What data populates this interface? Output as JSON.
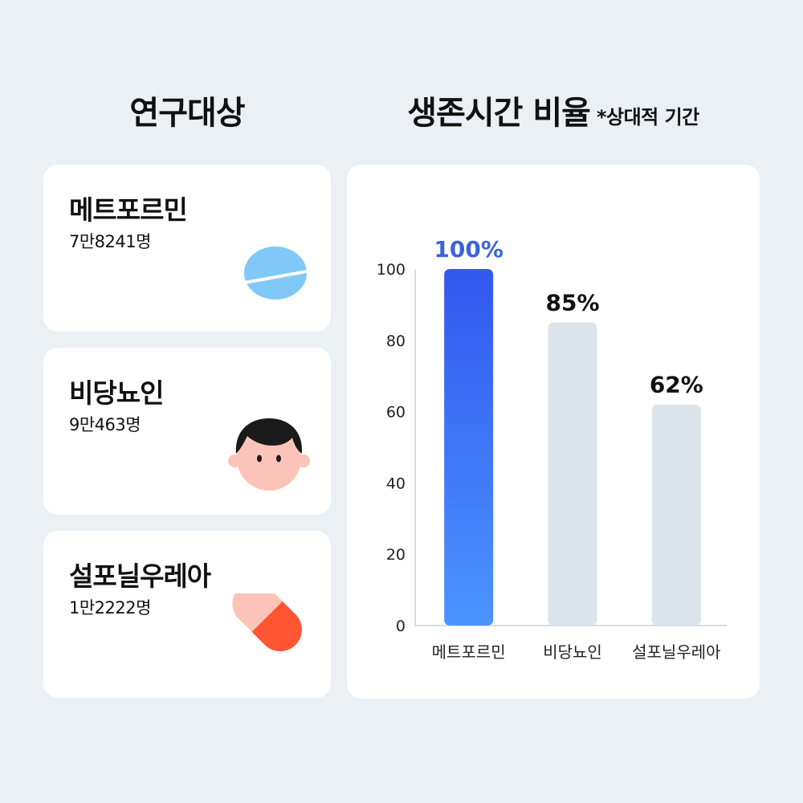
{
  "headings": {
    "subjects": "연구대상",
    "ratio": "생존시간 비율",
    "ratio_note": "*상대적 기간"
  },
  "subjects": [
    {
      "name": "메트포르민",
      "count": "7만8241명",
      "icon": "pill-tablet-icon",
      "color": "#7fc8f8"
    },
    {
      "name": "비당뇨인",
      "count": "9만463명",
      "icon": "person-face-icon",
      "color": "#fcc4b8"
    },
    {
      "name": "설포닐우레아",
      "count": "1만2222명",
      "icon": "capsule-icon",
      "color": "#ff5533"
    }
  ],
  "chart_data": {
    "type": "bar",
    "categories": [
      "메트포르민",
      "비당뇨인",
      "설포닐우레아"
    ],
    "values": [
      100,
      85,
      62
    ],
    "data_labels": [
      "100%",
      "85%",
      "62%"
    ],
    "ylim": [
      0,
      100
    ],
    "yticks": [
      "0",
      "20",
      "40",
      "60",
      "80",
      "100"
    ],
    "highlight_index": 0,
    "colors": {
      "highlight_top": "#3358ee",
      "highlight_bottom": "#4a94ff",
      "muted": "#dbe4ea",
      "highlight_label": "#3a63e0",
      "label": "#111111"
    }
  }
}
